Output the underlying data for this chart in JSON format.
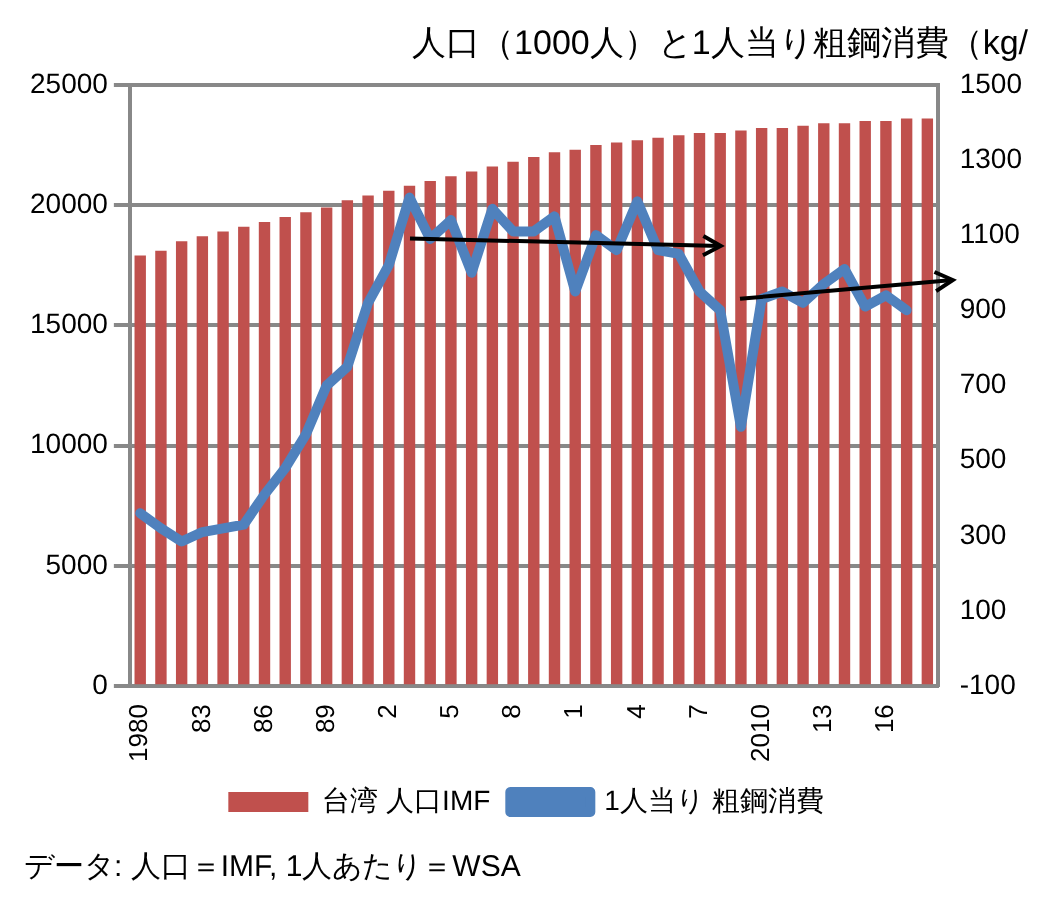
{
  "chart_data": {
    "type": "bar",
    "title": "人口（1000人）と1人当り粗鋼消費（kg/",
    "categories": [
      "1980",
      null,
      null,
      "83",
      null,
      null,
      "86",
      null,
      null,
      "89",
      null,
      null,
      "2",
      null,
      null,
      "5",
      null,
      null,
      "8",
      null,
      null,
      "1",
      null,
      null,
      "4",
      null,
      null,
      "7",
      null,
      null,
      "2010",
      null,
      null,
      "13",
      null,
      null,
      "16",
      null,
      null
    ],
    "series": [
      {
        "name": "台湾 人口IMF",
        "color": "#c0504d",
        "values": [
          17900,
          18100,
          18500,
          18700,
          18900,
          19100,
          19300,
          19500,
          19700,
          19900,
          20200,
          20400,
          20600,
          20800,
          21000,
          21200,
          21400,
          21600,
          21800,
          22000,
          22200,
          22300,
          22500,
          22600,
          22700,
          22800,
          22900,
          23000,
          23000,
          23100,
          23200,
          23200,
          23300,
          23400,
          23400,
          23500,
          23500,
          23600,
          23600
        ]
      },
      {
        "name": "1人当り 粗鋼消費",
        "type": "line",
        "axis": "y2",
        "color": "#4f81bd",
        "values": [
          360,
          320,
          285,
          310,
          320,
          330,
          410,
          480,
          570,
          700,
          750,
          920,
          1020,
          1200,
          1090,
          1140,
          1000,
          1170,
          1110,
          1110,
          1150,
          950,
          1100,
          1060,
          1190,
          1060,
          1050,
          950,
          900,
          590,
          930,
          950,
          920,
          970,
          1010,
          910,
          940,
          900,
          null
        ]
      }
    ],
    "ylim": [
      0,
      25000
    ],
    "yticks": [
      0,
      5000,
      10000,
      15000,
      20000,
      25000
    ],
    "y2lim": [
      -100,
      1500
    ],
    "y2ticks": [
      -100,
      100,
      300,
      500,
      700,
      900,
      1100,
      1300,
      1500
    ],
    "grid": "y",
    "legend": "bottom",
    "marker": "none",
    "line_style": "solid",
    "annotations": [
      "データ: 人口＝IMF, 1人あたり＝WSA"
    ]
  }
}
